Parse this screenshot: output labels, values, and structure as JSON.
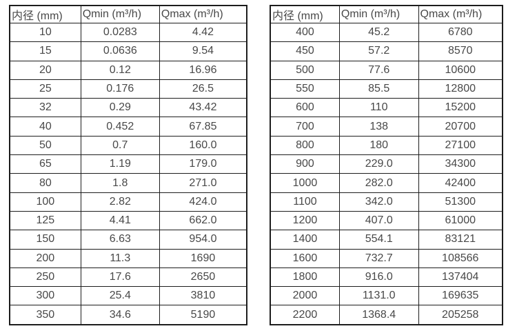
{
  "page": {
    "background_color": "#ffffff",
    "border_color": "#1c1c1c",
    "text_color": "#484848"
  },
  "tables": [
    {
      "name": "small-diameters-flow-table",
      "columns": [
        "内径 (mm)",
        "Qmin (m³/h)",
        "Qmax (m³/h)"
      ],
      "rows": [
        [
          "10",
          "0.0283",
          "4.42"
        ],
        [
          "15",
          "0.0636",
          "9.54"
        ],
        [
          "20",
          "0.12",
          "16.96"
        ],
        [
          "25",
          "0.176",
          "26.5"
        ],
        [
          "32",
          "0.29",
          "43.42"
        ],
        [
          "40",
          "0.452",
          "67.85"
        ],
        [
          "50",
          "0.7",
          "160.0"
        ],
        [
          "65",
          "1.19",
          "179.0"
        ],
        [
          "80",
          "1.8",
          "271.0"
        ],
        [
          "100",
          "2.82",
          "424.0"
        ],
        [
          "125",
          "4.41",
          "662.0"
        ],
        [
          "150",
          "6.63",
          "954.0"
        ],
        [
          "200",
          "11.3",
          "1690"
        ],
        [
          "250",
          "17.6",
          "2650"
        ],
        [
          "300",
          "25.4",
          "3810"
        ],
        [
          "350",
          "34.6",
          "5190"
        ]
      ]
    },
    {
      "name": "large-diameters-flow-table",
      "columns": [
        "内径 (mm)",
        "Qmin (m³/h)",
        "Qmax (m³/h)"
      ],
      "rows": [
        [
          "400",
          "45.2",
          "6780"
        ],
        [
          "450",
          "57.2",
          "8570"
        ],
        [
          "500",
          "77.6",
          "10600"
        ],
        [
          "550",
          "85.5",
          "12800"
        ],
        [
          "600",
          "110",
          "15200"
        ],
        [
          "700",
          "138",
          "20700"
        ],
        [
          "800",
          "180",
          "27100"
        ],
        [
          "900",
          "229.0",
          "34300"
        ],
        [
          "1000",
          "282.0",
          "42400"
        ],
        [
          "1100",
          "342.0",
          "51300"
        ],
        [
          "1200",
          "407.0",
          "61000"
        ],
        [
          "1400",
          "554.1",
          "83121"
        ],
        [
          "1600",
          "732.7",
          "108566"
        ],
        [
          "1800",
          "916.0",
          "137404"
        ],
        [
          "2000",
          "1131.0",
          "169635"
        ],
        [
          "2200",
          "1368.4",
          "205258"
        ]
      ]
    }
  ]
}
